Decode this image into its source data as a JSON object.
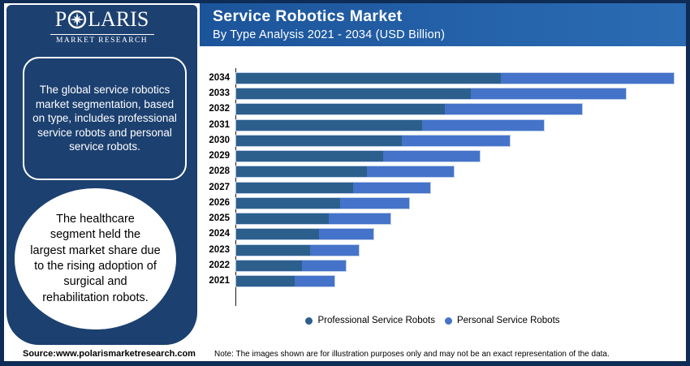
{
  "brand": {
    "logo_main_pre": "P",
    "logo_main_post": "LARIS",
    "logo_sub": "MARKET RESEARCH"
  },
  "header": {
    "title": "Service Robotics Market",
    "subtitle": "By Type Analysis 2021 - 2034 (USD Billion)"
  },
  "sidebar": {
    "box_text": "The global service robotics\nmarket segmentation, based\non type, includes professional\nservice robots and personal\nservice robots.",
    "circle_text": "The healthcare\nsegment held the\nlargest market share due\nto the rising adoption of\nsurgical and\nrehabilitation robots."
  },
  "footer": {
    "source": "Source:www.polarismarketresearch.com",
    "note": "Note: The images shown are for illustration purposes only and may not be an exact representation of the data."
  },
  "chart_data": {
    "type": "bar",
    "orientation": "horizontal",
    "stacked": true,
    "title": "Service Robotics Market",
    "subtitle": "By Type Analysis 2021 - 2034 (USD Billion)",
    "unit": "USD Billion",
    "categories": [
      "2034",
      "2033",
      "2032",
      "2031",
      "2030",
      "2029",
      "2028",
      "2027",
      "2026",
      "2025",
      "2024",
      "2023",
      "2022",
      "2021"
    ],
    "series": [
      {
        "name": "Professional Service Robots",
        "color": "#2d5f8c",
        "values": [
          107.6,
          95.4,
          84.8,
          75.6,
          67.3,
          59.7,
          53.1,
          47.5,
          42.2,
          37.6,
          33.7,
          30.0,
          26.7,
          23.8
        ]
      },
      {
        "name": "Personal Service Robots",
        "color": "#4573c9",
        "values": [
          70.3,
          63.0,
          55.8,
          49.5,
          43.9,
          39.3,
          35.3,
          31.4,
          28.1,
          25.1,
          22.1,
          19.8,
          17.8,
          16.2
        ]
      }
    ],
    "xlabel": "",
    "ylabel": "",
    "xlim": [
      0,
      180
    ],
    "value_labels": false,
    "legend_position": "bottom",
    "grid": false
  }
}
